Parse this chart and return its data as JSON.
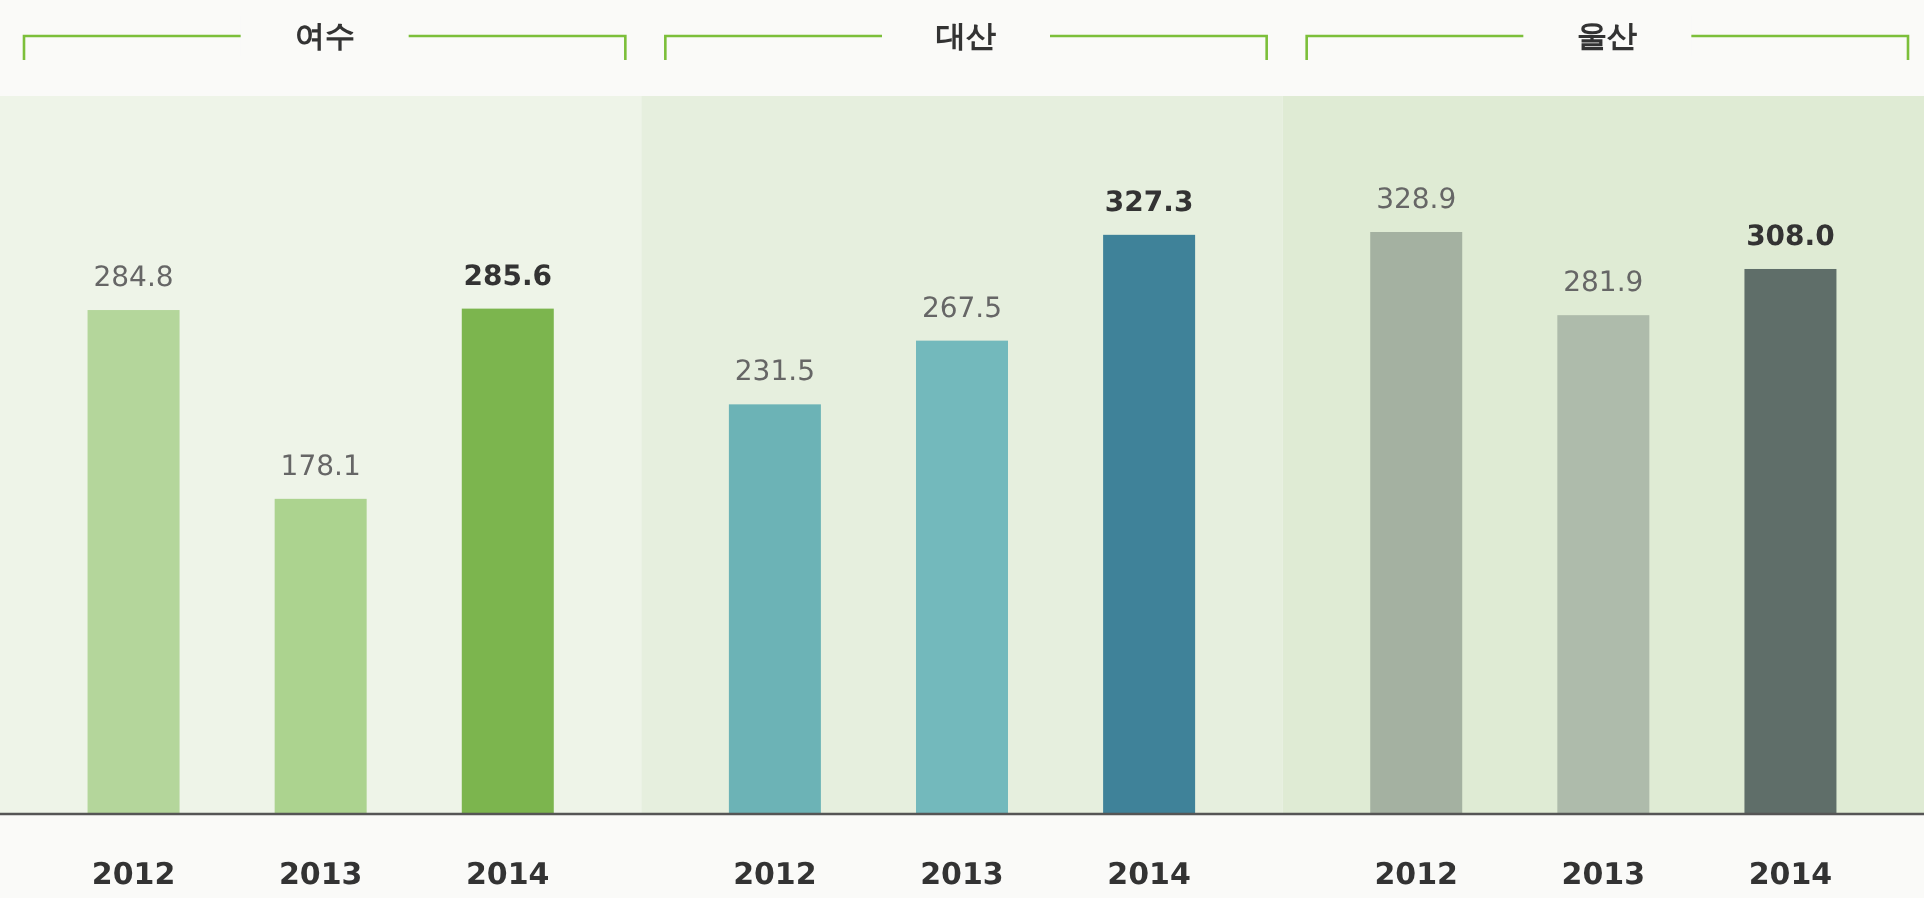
{
  "chart_data": [
    {
      "type": "bar",
      "title": "여수",
      "categories": [
        "2012",
        "2013",
        "2014"
      ],
      "values": [
        284.8,
        178.1,
        285.6
      ],
      "value_labels": [
        "284.8",
        "178.1",
        "285.6"
      ],
      "colors": [
        "#b4d69b",
        "#acd38f",
        "#7cb54e"
      ]
    },
    {
      "type": "bar",
      "title": "대산",
      "categories": [
        "2012",
        "2013",
        "2014"
      ],
      "values": [
        231.5,
        267.5,
        327.3
      ],
      "value_labels": [
        "231.5",
        "267.5",
        "327.3"
      ],
      "colors": [
        "#6cb3b6",
        "#73b9bc",
        "#3f8299"
      ]
    },
    {
      "type": "bar",
      "title": "울산",
      "categories": [
        "2012",
        "2013",
        "2014"
      ],
      "values": [
        328.9,
        281.9,
        308.0
      ],
      "value_labels": [
        "328.9",
        "281.9",
        "308.0"
      ],
      "colors": [
        "#a4b1a1",
        "#aebbab",
        "#5f6e69"
      ]
    }
  ]
}
